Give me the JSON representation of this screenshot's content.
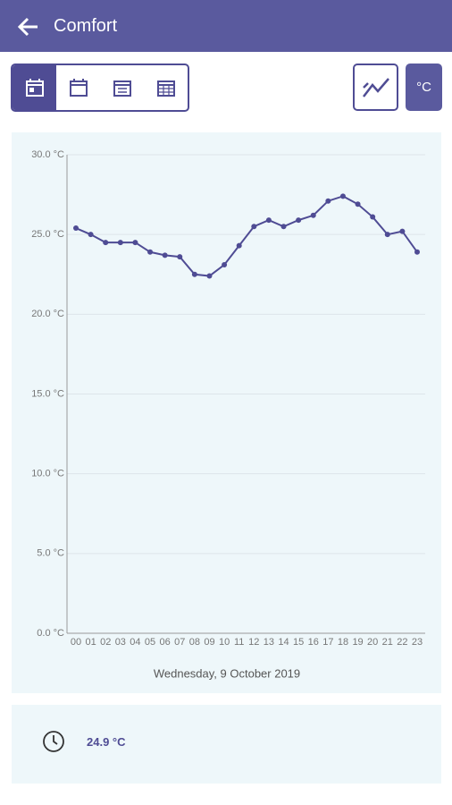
{
  "header": {
    "title": "Comfort"
  },
  "unit_button": "°C",
  "chart_data": {
    "type": "line",
    "x_label": "Wednesday, 9 October 2019",
    "categories": [
      "00",
      "01",
      "02",
      "03",
      "04",
      "05",
      "06",
      "07",
      "08",
      "09",
      "10",
      "11",
      "12",
      "13",
      "14",
      "15",
      "16",
      "17",
      "18",
      "19",
      "20",
      "21",
      "22",
      "23"
    ],
    "series": [
      {
        "color": "#4f4c94",
        "values": [
          25.4,
          25.0,
          24.5,
          24.5,
          24.5,
          23.9,
          23.7,
          23.6,
          22.5,
          22.4,
          23.1,
          24.3,
          25.5,
          25.9,
          25.5,
          25.9,
          26.2,
          27.1,
          27.4,
          26.9,
          26.1,
          25.0,
          25.2,
          23.9
        ]
      }
    ],
    "ylim": [
      0,
      30
    ],
    "yticks": [
      {
        "value": 0,
        "label": "0.0 °C"
      },
      {
        "value": 5,
        "label": "5.0 °C"
      },
      {
        "value": 10,
        "label": "10.0 °C"
      },
      {
        "value": 15,
        "label": "15.0 °C"
      },
      {
        "value": 20,
        "label": "20.0 °C"
      },
      {
        "value": 25,
        "label": "25.0 °C"
      },
      {
        "value": 30,
        "label": "30.0 °C"
      }
    ],
    "grid": true
  },
  "summary": {
    "value": "24.9 °C"
  }
}
